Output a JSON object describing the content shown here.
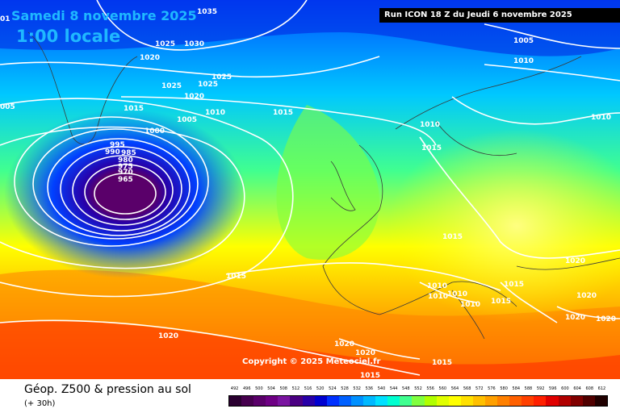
{
  "header": {
    "valid_date": "Samedi 8 novembre 2025",
    "valid_time": "1:00 locale",
    "run_info": "Run ICON 18 Z du Jeudi 6 novembre 2025"
  },
  "copyright": "Copyright © 2025 Meteociel.fr",
  "footer": {
    "title": "Géop. Z500 & pression au sol",
    "lead": "(+ 30h)"
  },
  "scale": {
    "values": [
      "492",
      "496",
      "500",
      "504",
      "508",
      "512",
      "516",
      "520",
      "524",
      "528",
      "532",
      "536",
      "540",
      "544",
      "548",
      "552",
      "556",
      "560",
      "564",
      "568",
      "572",
      "576",
      "580",
      "584",
      "588",
      "592",
      "596",
      "600",
      "604",
      "608",
      "612"
    ],
    "colors": [
      "#2a0030",
      "#46004e",
      "#5a006a",
      "#6e0084",
      "#7a14a0",
      "#4b0082",
      "#2800a8",
      "#0000d0",
      "#0030ff",
      "#0060ff",
      "#0090ff",
      "#00b8ff",
      "#00e0ff",
      "#00ffd0",
      "#40ff90",
      "#80ff40",
      "#b0ff00",
      "#e0ff00",
      "#ffff00",
      "#ffe000",
      "#ffc000",
      "#ffa000",
      "#ff8000",
      "#ff6000",
      "#ff4000",
      "#ff2000",
      "#e00000",
      "#b00000",
      "#800000",
      "#500000",
      "#200000"
    ]
  },
  "isobars": [
    "1035",
    "1030",
    "1025",
    "1020",
    "1025",
    "1025",
    "1025",
    "1020",
    "1015",
    "1010",
    "1015",
    "1005",
    "1000",
    "995",
    "990",
    "985",
    "980",
    "975",
    "970",
    "965",
    "005",
    "01",
    "1005",
    "1010",
    "1010",
    "1010",
    "1015",
    "1015",
    "1015",
    "1015",
    "1010",
    "1010",
    "1010",
    "1010",
    "1015",
    "1020",
    "1020",
    "1020",
    "1020",
    "1020",
    "1020",
    "1020",
    "1015",
    "1015"
  ]
}
